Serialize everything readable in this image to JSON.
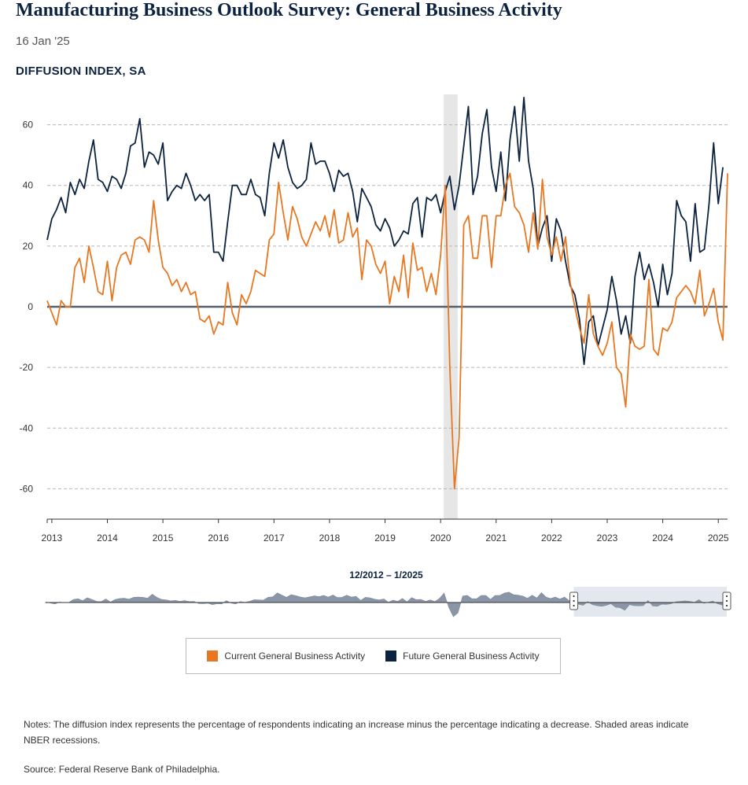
{
  "header": {
    "title": "Manufacturing Business Outlook Survey: General Business Activity",
    "date": "16 Jan '25",
    "subtitle": "DIFFUSION INDEX, SA"
  },
  "navigator": {
    "range_label": "12/2012 – 1/2025",
    "selected_range": [
      "2022-06",
      "2025-01"
    ]
  },
  "legend": [
    {
      "label": "Current General Business Activity",
      "color": "#e87722"
    },
    {
      "label": "Future General Business Activity",
      "color": "#0c2340"
    }
  ],
  "notes": "Notes: The diffusion index represents the percentage of respondents indicating an increase minus the percentage indicating a decrease. Shaded areas indicate NBER recessions.",
  "source": "Source: Federal Reserve Bank of Philadelphia.",
  "colors": {
    "current": "#e87722",
    "future": "#0c2340",
    "recession": "#e6e6e6",
    "zero_line": "#555e6b"
  },
  "chart_data": {
    "type": "line",
    "ylim": [
      -70,
      70
    ],
    "yticks": [
      -60,
      -40,
      -20,
      0,
      20,
      40,
      60
    ],
    "x_start": "2012-12",
    "xticks": [
      "2013",
      "2014",
      "2015",
      "2016",
      "2017",
      "2018",
      "2019",
      "2020",
      "2021",
      "2022",
      "2023",
      "2024",
      "2025"
    ],
    "grid": true,
    "recession": [
      "2020-02",
      "2020-04"
    ],
    "series": [
      {
        "name": "Current General Business Activity",
        "values": [
          2,
          -2,
          -6,
          2,
          0,
          0,
          13,
          16,
          8,
          20,
          13,
          5,
          4,
          15,
          2,
          13,
          17,
          18,
          14,
          22,
          23,
          22,
          18,
          35,
          22,
          13,
          11,
          7,
          9,
          5,
          8,
          4,
          5,
          -4,
          -5,
          -3,
          -9,
          -5,
          -6,
          8,
          -2,
          -6,
          4,
          1,
          5,
          12,
          11,
          10,
          22,
          24,
          41,
          31,
          22,
          33,
          29,
          23,
          20,
          24,
          28,
          25,
          30,
          23,
          32,
          21,
          22,
          31,
          23,
          26,
          9,
          22,
          20,
          14,
          11,
          15,
          1,
          10,
          5,
          17,
          3,
          21,
          12,
          13,
          5,
          11,
          4,
          17,
          40,
          -20,
          -60,
          -43,
          27,
          30,
          16,
          16,
          30,
          30,
          13,
          30,
          30,
          40,
          44,
          33,
          31,
          27,
          18,
          31,
          19,
          42,
          23,
          17,
          23,
          15,
          23,
          8,
          0,
          -7,
          -12,
          4,
          -9,
          -13,
          -16,
          -12,
          -5,
          -20,
          -22,
          -33,
          -9,
          -13,
          -14,
          -13,
          9,
          -14,
          -16,
          -7,
          -8,
          -5,
          3,
          5,
          7,
          5,
          1,
          12,
          -3,
          1,
          6,
          -5,
          -11,
          44
        ]
      },
      {
        "name": "Future General Business Activity",
        "values": [
          22,
          29,
          32,
          36,
          31,
          41,
          37,
          42,
          39,
          48,
          55,
          42,
          41,
          38,
          43,
          42,
          39,
          44,
          53,
          54,
          62,
          46,
          51,
          50,
          47,
          54,
          35,
          38,
          40,
          39,
          44,
          40,
          35,
          37,
          35,
          37,
          18,
          18,
          15,
          28,
          40,
          40,
          37,
          37,
          42,
          37,
          36,
          30,
          44,
          54,
          49,
          55,
          46,
          41,
          39,
          40,
          42,
          54,
          47,
          48,
          48,
          44,
          38,
          45,
          43,
          44,
          38,
          28,
          39,
          36,
          33,
          27,
          25,
          29,
          26,
          20,
          22,
          25,
          24,
          34,
          36,
          23,
          36,
          35,
          37,
          31,
          38,
          43,
          32,
          40,
          53,
          66,
          37,
          43,
          57,
          65,
          46,
          38,
          51,
          35,
          55,
          66,
          48,
          69,
          48,
          39,
          20,
          26,
          30,
          15,
          29,
          25,
          15,
          7,
          4,
          -4,
          -19,
          -5,
          -3,
          -13,
          -7,
          -1,
          10,
          2,
          -9,
          -3,
          -12,
          10,
          18,
          9,
          14,
          8,
          0,
          14,
          4,
          11,
          35,
          30,
          28,
          15,
          34,
          18,
          19,
          34,
          54,
          34,
          46
        ]
      }
    ]
  }
}
